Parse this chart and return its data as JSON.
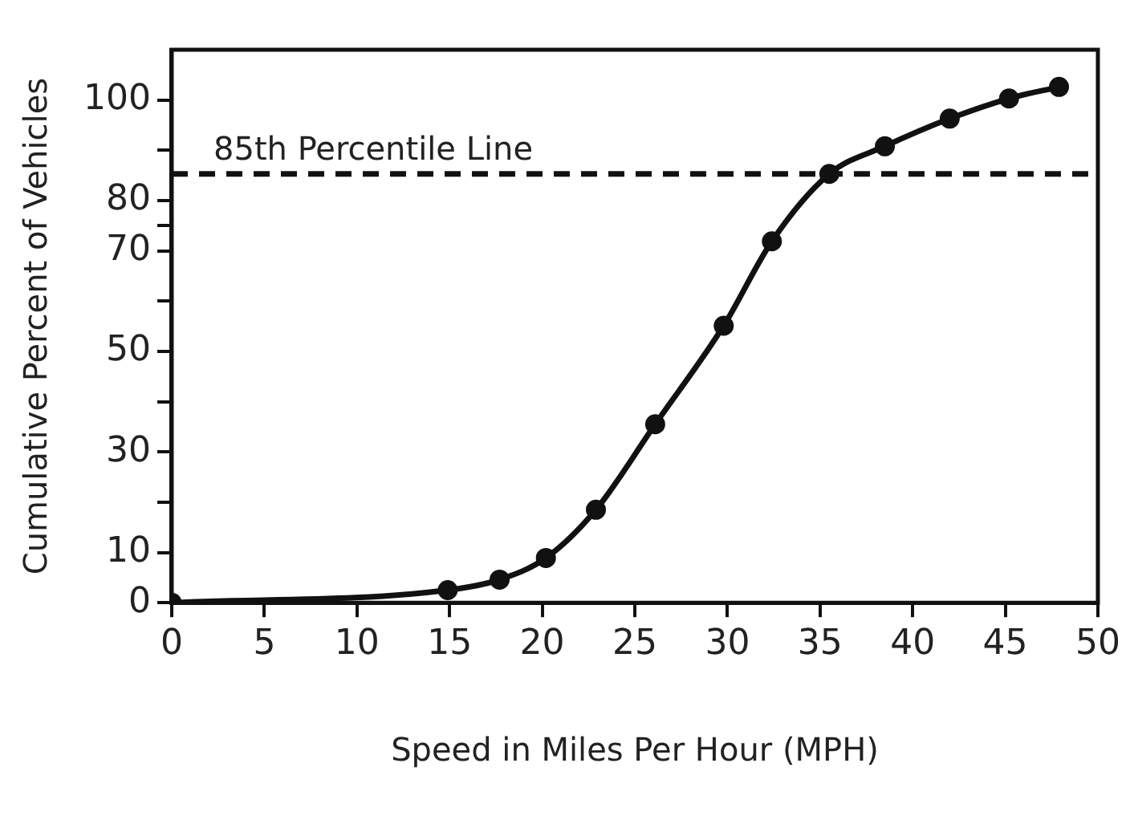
{
  "chart_data": {
    "type": "line",
    "xlabel": "Speed in Miles Per Hour (MPH)",
    "ylabel": "Cumulative Percent of Vehicles",
    "x": [
      0,
      14.9,
      17.7,
      20.2,
      22.9,
      26.1,
      29.8,
      32.4,
      35.5,
      38.5,
      42.0,
      45.2,
      47.9
    ],
    "series": [
      {
        "color": "#111111",
        "values": [
          0,
          2.5,
          4.6,
          8.9,
          18.5,
          35.5,
          55.1,
          71.9,
          85.3,
          90.8,
          96.3,
          100.3,
          102.6
        ]
      }
    ],
    "xlim": [
      0,
      50
    ],
    "xticks": [
      0,
      5,
      10,
      15,
      20,
      25,
      30,
      35,
      40,
      45,
      50
    ],
    "ylim": [
      0,
      110
    ],
    "yticks": [
      0,
      10,
      {
        "value": 20,
        "label": null
      },
      30,
      {
        "value": 40,
        "label": null
      },
      50,
      {
        "value": 60,
        "label": null
      },
      70,
      {
        "value": 75,
        "label": null
      },
      80,
      {
        "value": 90,
        "label": null
      },
      100
    ],
    "ref_lines": [
      {
        "axis": "y",
        "value": 85.3,
        "label": "85th Percentile Line",
        "line_style": "dashed",
        "color": "#111111"
      }
    ],
    "grid": false,
    "legend": false,
    "marker": "circle",
    "line_style": "solid"
  }
}
